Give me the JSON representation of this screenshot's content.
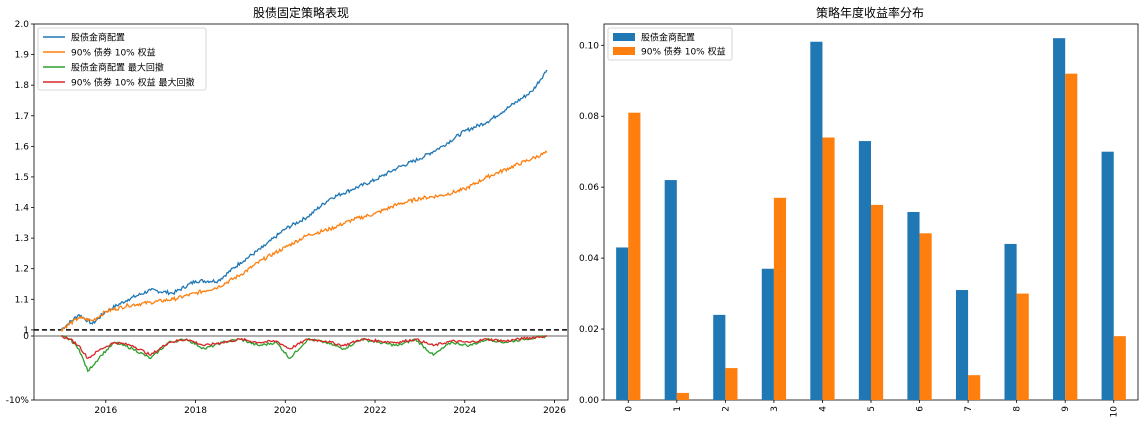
{
  "colors": {
    "blue": "#1f77b4",
    "orange": "#ff7f0e",
    "green": "#2ca02c",
    "red": "#d62728",
    "black": "#000000",
    "gray": "#808080"
  },
  "chart_data": [
    {
      "type": "line",
      "title": "股债固定策略表现",
      "xlabel": "",
      "ylabel": "",
      "xlim": [
        2014.4,
        2026.3
      ],
      "ylim_top": [
        0.98,
        2.0
      ],
      "ylim_bottom": [
        -0.1,
        0.0
      ],
      "xticks": [
        "2016",
        "2018",
        "2020",
        "2022",
        "2024",
        "2026"
      ],
      "yticks_top": [
        "1",
        "1.1",
        "1.2",
        "1.3",
        "1.4",
        "1.5",
        "1.6",
        "1.7",
        "1.8",
        "1.9",
        "2.0"
      ],
      "yticks_bottom": [
        "0",
        "-10%"
      ],
      "legend_position": "top-left",
      "reference_lines": [
        {
          "y": 1.0,
          "style": "dashed"
        },
        {
          "y": 0.0,
          "style": "solid"
        }
      ],
      "series": [
        {
          "name": "股债金商配置",
          "x": [
            2015.0,
            2015.4,
            2015.7,
            2016.0,
            2016.5,
            2017.0,
            2017.5,
            2018.0,
            2018.5,
            2019.0,
            2019.5,
            2020.0,
            2020.5,
            2021.0,
            2021.5,
            2022.0,
            2022.5,
            2023.0,
            2023.5,
            2024.0,
            2024.5,
            2025.0,
            2025.5,
            2025.83
          ],
          "values": [
            1.0,
            1.05,
            1.02,
            1.06,
            1.1,
            1.13,
            1.12,
            1.16,
            1.16,
            1.22,
            1.27,
            1.33,
            1.37,
            1.43,
            1.46,
            1.49,
            1.53,
            1.56,
            1.6,
            1.65,
            1.68,
            1.73,
            1.78,
            1.85
          ]
        },
        {
          "name": "90% 债券 10% 权益",
          "x": [
            2015.0,
            2015.4,
            2015.7,
            2016.0,
            2016.5,
            2017.0,
            2017.5,
            2018.0,
            2018.5,
            2019.0,
            2019.5,
            2020.0,
            2020.5,
            2021.0,
            2021.5,
            2022.0,
            2022.5,
            2023.0,
            2023.5,
            2024.0,
            2024.5,
            2025.0,
            2025.5,
            2025.83
          ],
          "values": [
            1.0,
            1.04,
            1.03,
            1.06,
            1.08,
            1.09,
            1.1,
            1.12,
            1.14,
            1.18,
            1.23,
            1.27,
            1.31,
            1.33,
            1.36,
            1.38,
            1.41,
            1.43,
            1.44,
            1.46,
            1.5,
            1.53,
            1.56,
            1.58
          ]
        },
        {
          "name": "股债金商配置 最大回撤",
          "x": [
            2015.0,
            2015.2,
            2015.4,
            2015.6,
            2015.9,
            2016.2,
            2016.6,
            2017.0,
            2017.4,
            2017.8,
            2018.2,
            2018.6,
            2019.0,
            2019.4,
            2019.8,
            2020.1,
            2020.5,
            2020.9,
            2021.3,
            2021.7,
            2022.1,
            2022.5,
            2022.9,
            2023.3,
            2023.7,
            2024.1,
            2024.5,
            2024.9,
            2025.3,
            2025.83
          ],
          "values": [
            0.0,
            -0.005,
            -0.02,
            -0.055,
            -0.03,
            -0.01,
            -0.02,
            -0.035,
            -0.01,
            -0.005,
            -0.02,
            -0.01,
            -0.005,
            -0.015,
            -0.01,
            -0.035,
            -0.005,
            -0.01,
            -0.02,
            -0.005,
            -0.01,
            -0.015,
            -0.005,
            -0.03,
            -0.01,
            -0.015,
            -0.005,
            -0.01,
            -0.005,
            0.0
          ]
        },
        {
          "name": "90% 债券 10% 权益 最大回撤",
          "x": [
            2015.0,
            2015.2,
            2015.4,
            2015.6,
            2015.9,
            2016.2,
            2016.6,
            2017.0,
            2017.4,
            2017.8,
            2018.2,
            2018.6,
            2019.0,
            2019.4,
            2019.8,
            2020.1,
            2020.5,
            2020.9,
            2021.3,
            2021.7,
            2022.1,
            2022.5,
            2022.9,
            2023.3,
            2023.7,
            2024.1,
            2024.5,
            2024.9,
            2025.3,
            2025.83
          ],
          "values": [
            0.0,
            -0.005,
            -0.015,
            -0.035,
            -0.02,
            -0.01,
            -0.015,
            -0.03,
            -0.01,
            -0.005,
            -0.015,
            -0.01,
            -0.005,
            -0.01,
            -0.008,
            -0.02,
            -0.005,
            -0.008,
            -0.015,
            -0.005,
            -0.008,
            -0.01,
            -0.005,
            -0.015,
            -0.008,
            -0.01,
            -0.005,
            -0.008,
            -0.004,
            0.0
          ]
        }
      ]
    },
    {
      "type": "bar",
      "title": "策略年度收益率分布",
      "xlabel": "",
      "ylabel": "",
      "ylim": [
        0.0,
        0.106
      ],
      "yticks": [
        "0.00",
        "0.02",
        "0.04",
        "0.06",
        "0.08",
        "0.10"
      ],
      "legend_position": "top-left",
      "categories": [
        "0",
        "1",
        "2",
        "3",
        "4",
        "5",
        "6",
        "7",
        "8",
        "9",
        "10"
      ],
      "series": [
        {
          "name": "股债金商配置",
          "values": [
            0.043,
            0.062,
            0.024,
            0.037,
            0.101,
            0.073,
            0.053,
            0.031,
            0.044,
            0.102,
            0.07
          ]
        },
        {
          "name": "90% 债券 10% 权益",
          "values": [
            0.081,
            0.002,
            0.009,
            0.057,
            0.074,
            0.055,
            0.047,
            0.007,
            0.03,
            0.092,
            0.018
          ]
        }
      ]
    }
  ]
}
